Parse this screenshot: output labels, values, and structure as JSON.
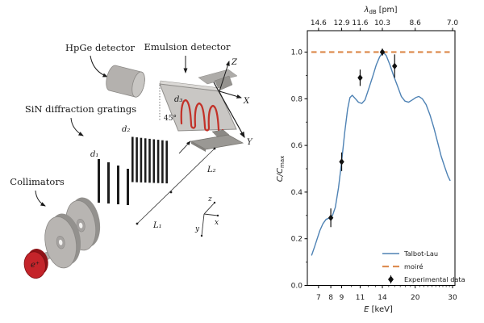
{
  "diagram": {
    "labels": {
      "hpge": "HpGe detector",
      "emulsion": "Emulsion detector",
      "gratings": "SiN diffraction gratings",
      "collimators": "Collimators",
      "positron": "e⁺",
      "d1": "d₁",
      "d2": "d₂",
      "d3": "d₃",
      "angle": "45°",
      "L1": "L₁",
      "L2": "L₂",
      "axis_Z": "Z",
      "axis_X": "X",
      "axis_Y": "Y",
      "axis_z": "z",
      "axis_x": "x",
      "axis_y": "y"
    },
    "colors": {
      "source_red": "#c4242a",
      "serpentine_red": "#c23128",
      "metal_gray": "#b4b1ae",
      "grating_black": "#1c1c1c"
    }
  },
  "chart_data": {
    "type": "line",
    "x_scale": "log",
    "xlim": [
      6.2,
      30.8
    ],
    "ylim": [
      0,
      1.09
    ],
    "xlabel_symbol": "E",
    "xlabel_unit": " [keV]",
    "ylabel_symbol": "C/C",
    "ylabel_subscript": "max",
    "top_axis": {
      "symbol": "λ",
      "subscript": "dB",
      "unit": " [pm]",
      "tick_values": [
        7,
        9,
        11,
        14,
        20,
        30
      ],
      "tick_labels": [
        "14.6",
        "12.9",
        "11.6",
        "10.3",
        "8.6",
        "7.0"
      ]
    },
    "x_ticks": [
      7,
      8,
      9,
      11,
      14,
      20,
      30
    ],
    "x_minor_ticks": [
      10,
      12,
      13,
      15,
      16,
      17,
      18,
      19,
      21,
      22,
      23,
      24,
      25,
      26,
      27,
      28,
      29
    ],
    "y_ticks": [
      "0.0",
      "0.2",
      "0.4",
      "0.6",
      "0.8",
      "1.0"
    ],
    "y_minor_step": 0.1,
    "grid": false,
    "series": [
      {
        "name": "Talbot-Lau",
        "type": "line",
        "color": "#4e82b4",
        "x": [
          6.5,
          6.7,
          6.9,
          7.1,
          7.35,
          7.6,
          7.9,
          8.15,
          8.4,
          8.7,
          9.0,
          9.3,
          9.6,
          9.85,
          10.1,
          10.45,
          10.8,
          11.2,
          11.6,
          12.1,
          12.6,
          13.1,
          13.6,
          14.1,
          14.6,
          15.2,
          15.8,
          16.5,
          17.2,
          17.9,
          18.6,
          19.4,
          20.1,
          20.8,
          21.6,
          22.5,
          23.5,
          24.5,
          25.5,
          26.5,
          27.5,
          28.5,
          29.2
        ],
        "y": [
          0.13,
          0.165,
          0.2,
          0.235,
          0.265,
          0.283,
          0.29,
          0.3,
          0.335,
          0.42,
          0.53,
          0.655,
          0.755,
          0.805,
          0.815,
          0.8,
          0.785,
          0.78,
          0.795,
          0.845,
          0.895,
          0.945,
          0.98,
          1.0,
          0.985,
          0.945,
          0.9,
          0.855,
          0.81,
          0.79,
          0.785,
          0.795,
          0.805,
          0.81,
          0.8,
          0.775,
          0.73,
          0.675,
          0.615,
          0.555,
          0.51,
          0.47,
          0.45
        ]
      },
      {
        "name": "moiré",
        "type": "dashed-hline",
        "color": "#dd8d52",
        "y": 1.0
      },
      {
        "name": "Experimental data",
        "type": "scatter-errorbar",
        "color": "#111111",
        "x": [
          8,
          9,
          11,
          14,
          16
        ],
        "y": [
          0.29,
          0.53,
          0.89,
          1.0,
          0.94
        ],
        "yerr": [
          0.04,
          0.04,
          0.035,
          0.015,
          0.05
        ]
      }
    ],
    "legend": {
      "position": "lower right",
      "entries": [
        "Talbot-Lau",
        "moiré",
        "Experimental data"
      ]
    }
  }
}
